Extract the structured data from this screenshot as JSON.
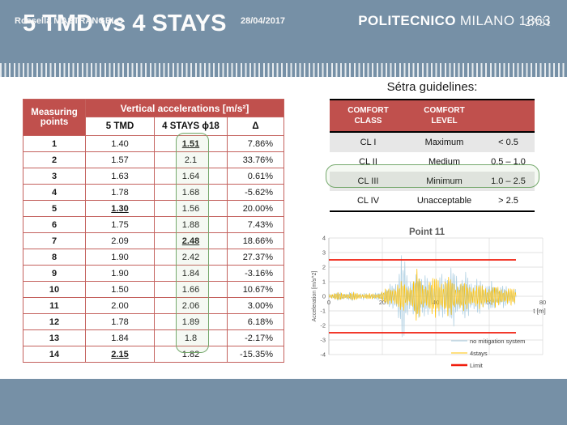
{
  "slide": {
    "title": "5 TMD vs 4 STAYS",
    "page_number": "27/31"
  },
  "footer": {
    "author": "Rossella MASTRANGELO",
    "date": "28/04/2017",
    "brand_bold": "POLITECNICO",
    "brand_light": "MILANO 1863"
  },
  "colors": {
    "band_blue": "#7690A6",
    "table_red": "#C0504D",
    "highlight_green": "#74A86B",
    "series_blue": "#A9CCE0",
    "series_yellow": "#FFC000",
    "limit_red": "#F01D0D",
    "grid_gray": "#D9D9D9",
    "label_gray": "#595959"
  },
  "measurements": {
    "col1_line1": "Measuring",
    "col1_line2": "points",
    "span_header": "Vertical accelerations [m/s²]",
    "sub_headers": [
      "5 TMD",
      "4 STAYS ϕ18",
      "Δ"
    ],
    "rows": [
      {
        "point": "1",
        "tmd": "1.40",
        "stays": "1.51",
        "delta": "7.86%",
        "stays_mark": true
      },
      {
        "point": "2",
        "tmd": "1.57",
        "stays": "2.1",
        "delta": "33.76%"
      },
      {
        "point": "3",
        "tmd": "1.63",
        "stays": "1.64",
        "delta": "0.61%"
      },
      {
        "point": "4",
        "tmd": "1.78",
        "stays": "1.68",
        "delta": "-5.62%"
      },
      {
        "point": "5",
        "tmd": "1.30",
        "stays": "1.56",
        "delta": "20.00%",
        "tmd_mark": true
      },
      {
        "point": "6",
        "tmd": "1.75",
        "stays": "1.88",
        "delta": "7.43%"
      },
      {
        "point": "7",
        "tmd": "2.09",
        "stays": "2.48",
        "delta": "18.66%",
        "stays_mark": true
      },
      {
        "point": "8",
        "tmd": "1.90",
        "stays": "2.42",
        "delta": "27.37%"
      },
      {
        "point": "9",
        "tmd": "1.90",
        "stays": "1.84",
        "delta": "-3.16%"
      },
      {
        "point": "10",
        "tmd": "1.50",
        "stays": "1.66",
        "delta": "10.67%"
      },
      {
        "point": "11",
        "tmd": "2.00",
        "stays": "2.06",
        "delta": "3.00%"
      },
      {
        "point": "12",
        "tmd": "1.78",
        "stays": "1.89",
        "delta": "6.18%"
      },
      {
        "point": "13",
        "tmd": "1.84",
        "stays": "1.8",
        "delta": "-2.17%"
      },
      {
        "point": "14",
        "tmd": "2.15",
        "stays": "1.82",
        "delta": "-15.35%",
        "tmd_mark": true
      }
    ]
  },
  "setra": {
    "title": "Sétra guidelines:",
    "headers": [
      "COMFORT\nCLASS",
      "COMFORT\nLEVEL",
      ""
    ],
    "rows": [
      {
        "cls": "CL I",
        "level": "Maximum",
        "range": "< 0.5"
      },
      {
        "cls": "CL II",
        "level": "Medium",
        "range": "0.5 – 1.0"
      },
      {
        "cls": "CL III",
        "level": "Minimum",
        "range": "1.0 – 2.5",
        "highlighted": true
      },
      {
        "cls": "CL IV",
        "level": "Unacceptable",
        "range": "> 2.5"
      }
    ]
  },
  "chart_data": {
    "type": "line",
    "title": "Point 11",
    "xlabel": "t [m]",
    "ylabel": "Acceleration [m/s^2]",
    "xlim": [
      0,
      80
    ],
    "ylim": [
      -4,
      4
    ],
    "x_ticks": [
      0,
      20,
      40,
      60,
      80
    ],
    "y_ticks": [
      -4,
      -3,
      -2,
      -1,
      0,
      1,
      2,
      3,
      4
    ],
    "grid": true,
    "legend_position": "bottom-right",
    "data_t_end": 70,
    "limit_value": 2.5,
    "series": [
      {
        "name": "no mitigation system",
        "color_key": "series_blue",
        "envelope": [
          [
            0,
            0.22
          ],
          [
            3,
            0.3
          ],
          [
            6,
            0.28
          ],
          [
            9,
            0.32
          ],
          [
            12,
            0.25
          ],
          [
            15,
            0.22
          ],
          [
            18,
            0.25
          ],
          [
            20,
            0.35
          ],
          [
            22,
            0.7
          ],
          [
            24,
            1.1
          ],
          [
            25.5,
            1.7
          ],
          [
            26.5,
            2.5
          ],
          [
            27.5,
            3.3
          ],
          [
            28.5,
            3.0
          ],
          [
            29.5,
            2.2
          ],
          [
            31,
            1.3
          ],
          [
            32.5,
            1.5
          ],
          [
            34,
            2.25
          ],
          [
            35.5,
            2.1
          ],
          [
            37,
            1.3
          ],
          [
            38.5,
            1.15
          ],
          [
            40,
            1.35
          ],
          [
            41.5,
            1.5
          ],
          [
            43,
            1.9
          ],
          [
            44.5,
            2.3
          ],
          [
            46,
            2.25
          ],
          [
            47.5,
            1.9
          ],
          [
            49,
            1.6
          ],
          [
            51,
            1.75
          ],
          [
            53,
            1.5
          ],
          [
            55,
            1.35
          ],
          [
            57,
            1.25
          ],
          [
            59,
            1.15
          ],
          [
            61,
            1.05
          ],
          [
            63,
            0.95
          ],
          [
            65,
            0.85
          ],
          [
            67,
            0.75
          ],
          [
            70,
            0.6
          ]
        ]
      },
      {
        "name": "4stays",
        "color_key": "series_yellow",
        "envelope": [
          [
            0,
            0.2
          ],
          [
            3,
            0.28
          ],
          [
            6,
            0.25
          ],
          [
            9,
            0.3
          ],
          [
            12,
            0.22
          ],
          [
            15,
            0.2
          ],
          [
            18,
            0.22
          ],
          [
            20,
            0.4
          ],
          [
            22,
            0.6
          ],
          [
            24,
            0.85
          ],
          [
            26,
            1.0
          ],
          [
            28,
            1.1
          ],
          [
            30,
            0.95
          ],
          [
            31.5,
            1.2
          ],
          [
            33,
            2.0
          ],
          [
            34.5,
            1.35
          ],
          [
            36,
            1.15
          ],
          [
            37.5,
            1.2
          ],
          [
            39,
            1.35
          ],
          [
            40.5,
            1.9
          ],
          [
            42,
            1.5
          ],
          [
            43.5,
            1.25
          ],
          [
            45,
            1.5
          ],
          [
            46.5,
            1.4
          ],
          [
            48,
            1.15
          ],
          [
            50,
            1.05
          ],
          [
            52,
            1.0
          ],
          [
            54,
            0.95
          ],
          [
            56,
            0.9
          ],
          [
            58,
            0.85
          ],
          [
            60,
            0.82
          ],
          [
            63,
            0.75
          ],
          [
            66,
            0.7
          ],
          [
            70,
            0.55
          ]
        ]
      },
      {
        "name": "Limit",
        "color_key": "limit_red",
        "values": [
          2.5,
          -2.5
        ]
      }
    ]
  }
}
